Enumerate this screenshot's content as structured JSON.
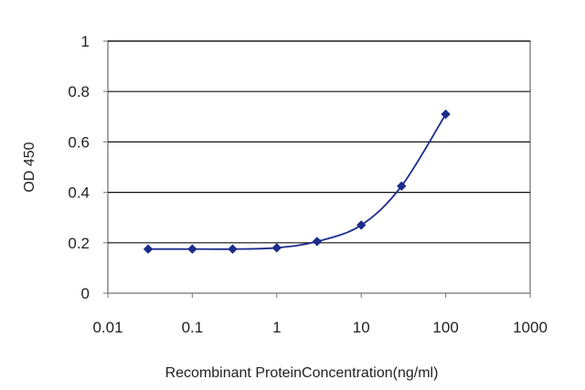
{
  "chart_data": {
    "type": "line",
    "title": "",
    "xlabel": "Recombinant ProteinConcentration(ng/ml)",
    "ylabel": "OD 450",
    "x_scale": "log",
    "xlim": [
      0.01,
      1000
    ],
    "ylim": [
      0,
      1
    ],
    "x_ticks": [
      "0.01",
      "0.1",
      "1",
      "10",
      "100",
      "1000"
    ],
    "y_ticks": [
      "0",
      "0.2",
      "0.4",
      "0.6",
      "0.8",
      "1"
    ],
    "grid": "horizontal",
    "legend": "none",
    "series": [
      {
        "color": "#1c2c8c",
        "marker": "diamond",
        "points": [
          {
            "x": 0.03,
            "y": 0.175
          },
          {
            "x": 0.1,
            "y": 0.175
          },
          {
            "x": 0.3,
            "y": 0.175
          },
          {
            "x": 1,
            "y": 0.18
          },
          {
            "x": 3,
            "y": 0.205
          },
          {
            "x": 10,
            "y": 0.27
          },
          {
            "x": 30,
            "y": 0.425
          },
          {
            "x": 100,
            "y": 0.71
          }
        ]
      }
    ],
    "colors": {
      "plot_background": "#ffffff",
      "gridline": "#111111",
      "axis": "#888888"
    }
  }
}
